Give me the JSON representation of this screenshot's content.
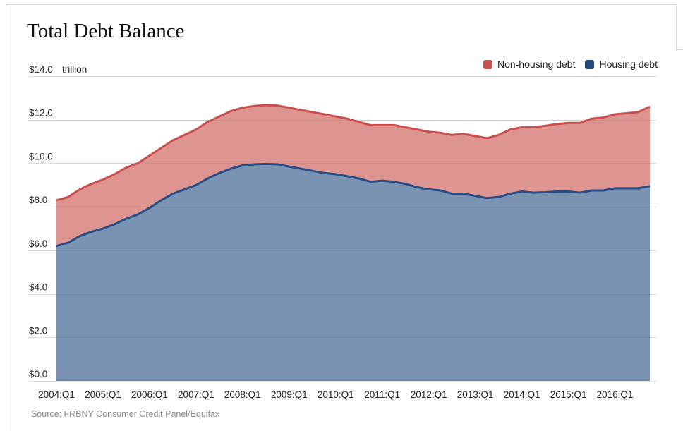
{
  "title": "Total Debt Balance",
  "source": "Source: FRBNY Consumer Credit Panel/Equifax",
  "unit_label": "trillion",
  "colors": {
    "non_housing_fill": "#de9490",
    "non_housing_line": "#c9504d",
    "housing_fill": "#7a93b3",
    "housing_line": "#264e86",
    "legend_non_housing": "#c9504d",
    "legend_housing": "#22497d",
    "grid": "#dcdcdc"
  },
  "legend": {
    "position": "top-right",
    "items": [
      {
        "label": "Non-housing debt",
        "color": "#c9504d"
      },
      {
        "label": "Housing debt",
        "color": "#22497d"
      }
    ]
  },
  "chart_data": {
    "type": "area",
    "stacked": true,
    "ylim": [
      0,
      14
    ],
    "yticks": [
      0,
      2,
      4,
      6,
      8,
      10,
      12,
      14
    ],
    "ytick_labels": [
      "$0.0",
      "$2.0",
      "$4.0",
      "$6.0",
      "$8.0",
      "$10.0",
      "$12.0",
      "$14.0"
    ],
    "grid": true,
    "xtick_labels": [
      "2004:Q1",
      "2005:Q1",
      "2006:Q1",
      "2007:Q1",
      "2008:Q1",
      "2009:Q1",
      "2010:Q1",
      "2011:Q1",
      "2012:Q1",
      "2013:Q1",
      "2014:Q1",
      "2015:Q1",
      "2016:Q1"
    ],
    "x": [
      "2004:Q1",
      "2004:Q2",
      "2004:Q3",
      "2004:Q4",
      "2005:Q1",
      "2005:Q2",
      "2005:Q3",
      "2005:Q4",
      "2006:Q1",
      "2006:Q2",
      "2006:Q3",
      "2006:Q4",
      "2007:Q1",
      "2007:Q2",
      "2007:Q3",
      "2007:Q4",
      "2008:Q1",
      "2008:Q2",
      "2008:Q3",
      "2008:Q4",
      "2009:Q1",
      "2009:Q2",
      "2009:Q3",
      "2009:Q4",
      "2010:Q1",
      "2010:Q2",
      "2010:Q3",
      "2010:Q4",
      "2011:Q1",
      "2011:Q2",
      "2011:Q3",
      "2011:Q4",
      "2012:Q1",
      "2012:Q2",
      "2012:Q3",
      "2012:Q4",
      "2013:Q1",
      "2013:Q2",
      "2013:Q3",
      "2013:Q4",
      "2014:Q1",
      "2014:Q2",
      "2014:Q3",
      "2014:Q4",
      "2015:Q1",
      "2015:Q2",
      "2015:Q3",
      "2015:Q4",
      "2016:Q1",
      "2016:Q2",
      "2016:Q3",
      "2016:Q4"
    ],
    "series": [
      {
        "name": "Housing debt",
        "values": [
          6.2,
          6.35,
          6.65,
          6.85,
          7.0,
          7.2,
          7.45,
          7.65,
          7.95,
          8.3,
          8.6,
          8.8,
          9.0,
          9.3,
          9.55,
          9.75,
          9.9,
          9.95,
          9.97,
          9.95,
          9.85,
          9.75,
          9.65,
          9.55,
          9.5,
          9.4,
          9.3,
          9.15,
          9.2,
          9.15,
          9.05,
          8.9,
          8.8,
          8.75,
          8.6,
          8.6,
          8.5,
          8.4,
          8.45,
          8.6,
          8.7,
          8.65,
          8.67,
          8.7,
          8.7,
          8.65,
          8.75,
          8.75,
          8.85,
          8.85,
          8.85,
          8.95
        ]
      },
      {
        "name": "Non-housing debt",
        "values": [
          2.1,
          2.1,
          2.15,
          2.2,
          2.25,
          2.3,
          2.35,
          2.35,
          2.4,
          2.4,
          2.45,
          2.5,
          2.55,
          2.6,
          2.6,
          2.65,
          2.65,
          2.68,
          2.7,
          2.7,
          2.7,
          2.7,
          2.7,
          2.7,
          2.65,
          2.65,
          2.6,
          2.6,
          2.55,
          2.6,
          2.6,
          2.65,
          2.65,
          2.65,
          2.7,
          2.75,
          2.75,
          2.75,
          2.85,
          2.95,
          2.95,
          3.0,
          3.05,
          3.1,
          3.15,
          3.2,
          3.3,
          3.35,
          3.4,
          3.45,
          3.5,
          3.65
        ]
      }
    ]
  }
}
